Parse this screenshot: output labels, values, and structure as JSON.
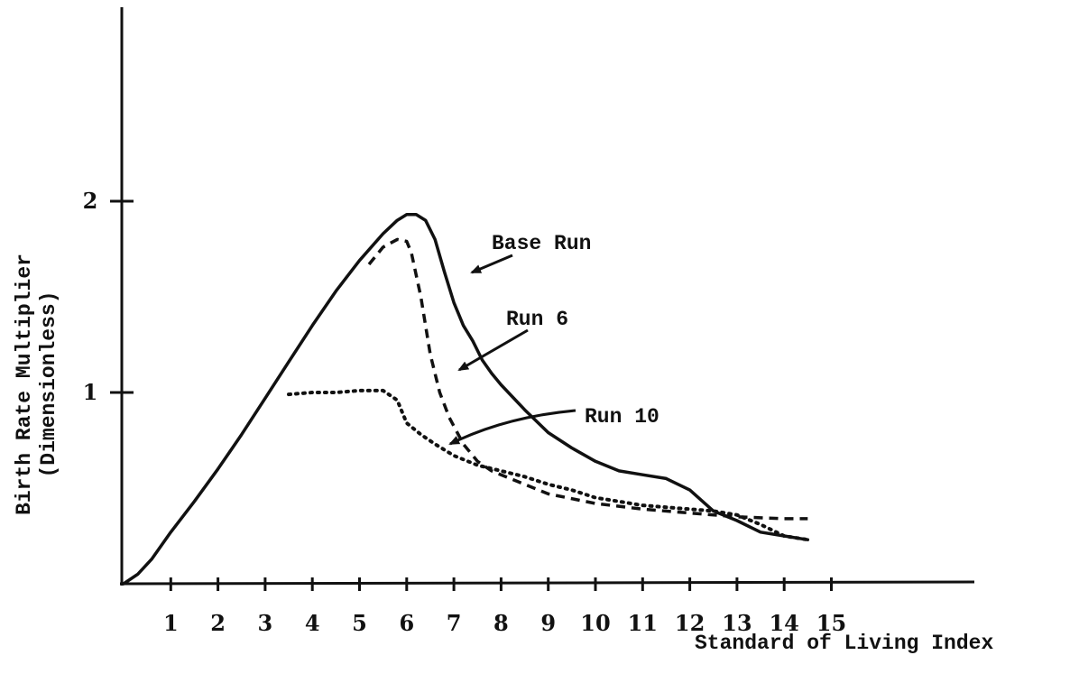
{
  "chart_data": {
    "type": "line",
    "title": "",
    "xlabel": "Standard of Living Index",
    "ylabel_lines": [
      "Birth Rate Multiplier",
      "(Dimensionless)"
    ],
    "xlim": [
      0,
      15
    ],
    "ylim": [
      0,
      2
    ],
    "x_ticks": [
      1,
      2,
      3,
      4,
      5,
      6,
      7,
      8,
      9,
      10,
      11,
      12,
      13,
      14,
      15
    ],
    "y_ticks": [
      1,
      2
    ],
    "grid": false,
    "series": [
      {
        "name": "Base Run",
        "style": "solid",
        "x": [
          0,
          0.3,
          0.6,
          1,
          1.5,
          2,
          2.5,
          3,
          3.5,
          4,
          4.5,
          5,
          5.5,
          5.8,
          6,
          6.2,
          6.4,
          6.6,
          6.8,
          7,
          7.2,
          7.4,
          7.6,
          7.8,
          8,
          8.5,
          9,
          9.5,
          10,
          10.5,
          11,
          11.5,
          12,
          12.5,
          13,
          13.5,
          14,
          14.5
        ],
        "values": [
          0,
          0.05,
          0.13,
          0.27,
          0.43,
          0.6,
          0.78,
          0.97,
          1.16,
          1.35,
          1.53,
          1.69,
          1.83,
          1.9,
          1.93,
          1.93,
          1.9,
          1.8,
          1.63,
          1.47,
          1.35,
          1.27,
          1.17,
          1.1,
          1.04,
          0.91,
          0.79,
          0.71,
          0.64,
          0.59,
          0.57,
          0.55,
          0.49,
          0.38,
          0.33,
          0.27,
          0.25,
          0.23
        ]
      },
      {
        "name": "Run 6",
        "style": "dashed",
        "x": [
          5.2,
          5.5,
          5.8,
          6,
          6.1,
          6.3,
          6.5,
          6.7,
          6.9,
          7.2,
          7.5,
          7.8,
          8,
          8.5,
          9,
          10,
          11,
          12,
          13,
          14,
          14.5
        ],
        "values": [
          1.67,
          1.76,
          1.8,
          1.79,
          1.73,
          1.5,
          1.2,
          1.0,
          0.87,
          0.73,
          0.64,
          0.59,
          0.57,
          0.52,
          0.47,
          0.42,
          0.39,
          0.37,
          0.35,
          0.34,
          0.34
        ]
      },
      {
        "name": "Run 10",
        "style": "dotted",
        "x": [
          3.5,
          4,
          4.5,
          5,
          5.5,
          5.8,
          6,
          6.3,
          6.6,
          7,
          7.5,
          8,
          8.5,
          9,
          9.5,
          10,
          10.5,
          11,
          11.5,
          12,
          12.5,
          13,
          13.5,
          14,
          14.5
        ],
        "values": [
          0.99,
          1.0,
          1.0,
          1.01,
          1.01,
          0.96,
          0.84,
          0.78,
          0.73,
          0.67,
          0.62,
          0.59,
          0.56,
          0.52,
          0.49,
          0.45,
          0.43,
          0.41,
          0.4,
          0.39,
          0.38,
          0.36,
          0.31,
          0.25,
          0.23
        ]
      }
    ],
    "annotations": [
      {
        "text": "Base Run",
        "target_series": "Base Run"
      },
      {
        "text": "Run 6",
        "target_series": "Run 6"
      },
      {
        "text": "Run 10",
        "target_series": "Run 10"
      }
    ]
  }
}
